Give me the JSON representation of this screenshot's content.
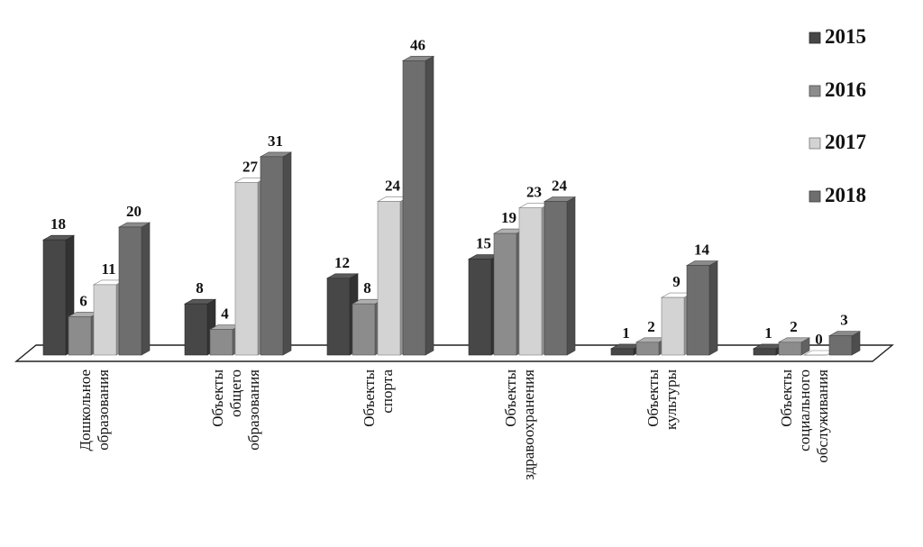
{
  "chart_data": {
    "type": "bar",
    "categories": [
      [
        "Дошкольное",
        "образования"
      ],
      [
        "Объекты",
        "общего",
        "образования"
      ],
      [
        "Объекты",
        "спорта"
      ],
      [
        "Объекты",
        "здравоохранения"
      ],
      [
        "Объекты",
        "культуры"
      ],
      [
        "Объекты",
        "социального",
        "обслуживания"
      ]
    ],
    "series": [
      {
        "name": "2015",
        "values": [
          18,
          8,
          12,
          15,
          1,
          1
        ]
      },
      {
        "name": "2016",
        "values": [
          6,
          4,
          8,
          19,
          2,
          2
        ]
      },
      {
        "name": "2017",
        "values": [
          11,
          27,
          24,
          23,
          9,
          0
        ]
      },
      {
        "name": "2018",
        "values": [
          20,
          31,
          46,
          24,
          14,
          3
        ]
      }
    ],
    "ylim": [
      0,
      46
    ],
    "grid": false,
    "legend": "right",
    "colors": [
      "#474747",
      "#8c8c8c",
      "#d3d3d3",
      "#6e6e6e"
    ]
  }
}
